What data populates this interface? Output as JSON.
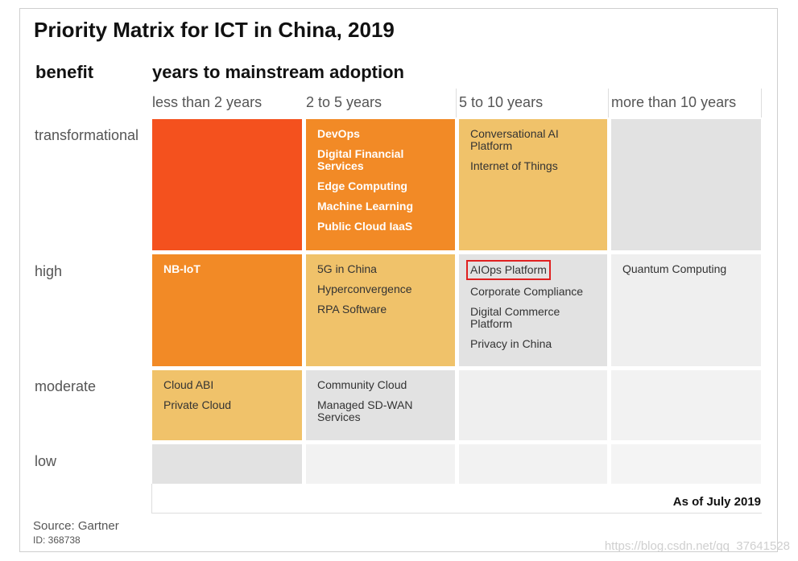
{
  "title": "Priority Matrix for ICT in China, 2019",
  "row_axis_label": "benefit",
  "column_axis_label": "years to mainstream adoption",
  "columns": [
    "less than 2 years",
    "2 to 5 years",
    "5 to 10 years",
    "more than 10 years"
  ],
  "rows": [
    {
      "label": "transformational",
      "cells": [
        {
          "items": []
        },
        {
          "items": [
            "DevOps",
            "Digital Financial Services",
            "Edge Computing",
            "Machine Learning",
            "Public Cloud IaaS"
          ]
        },
        {
          "items": [
            "Conversational AI Platform",
            "Internet of Things"
          ]
        },
        {
          "items": []
        }
      ]
    },
    {
      "label": "high",
      "cells": [
        {
          "items": [
            "NB-IoT"
          ]
        },
        {
          "items": [
            "5G in China",
            "Hyperconvergence",
            "RPA Software"
          ]
        },
        {
          "items": [
            "AIOps Platform",
            "Corporate Compliance",
            "Digital Commerce Platform",
            "Privacy in China"
          ]
        },
        {
          "items": [
            "Quantum Computing"
          ]
        }
      ]
    },
    {
      "label": "moderate",
      "cells": [
        {
          "items": [
            "Cloud ABI",
            "Private Cloud"
          ]
        },
        {
          "items": [
            "Community Cloud",
            "Managed SD-WAN Services"
          ]
        },
        {
          "items": []
        },
        {
          "items": []
        }
      ]
    },
    {
      "label": "low",
      "cells": [
        {
          "items": []
        },
        {
          "items": []
        },
        {
          "items": []
        },
        {
          "items": []
        }
      ]
    }
  ],
  "as_of": "As of July 2019",
  "source": "Source: Gartner",
  "id": "ID: 368738",
  "watermark": "https://blog.csdn.net/qq_37641528"
}
